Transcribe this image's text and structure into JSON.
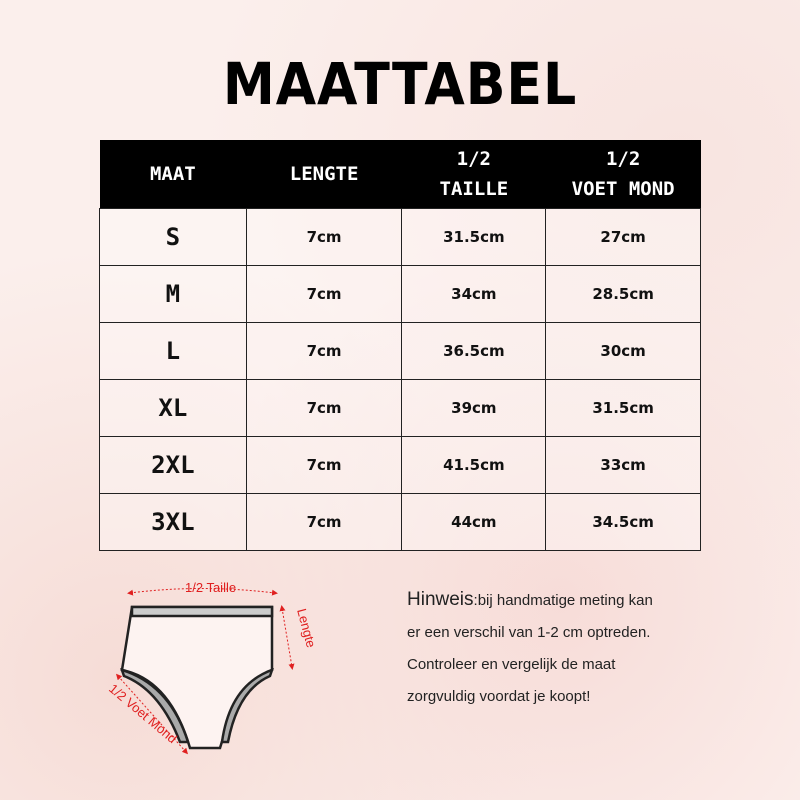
{
  "title": "MAATTABEL",
  "table": {
    "headers": [
      [
        "MAAT",
        ""
      ],
      [
        "LENGTE",
        ""
      ],
      [
        "1/2",
        "TAILLE"
      ],
      [
        "1/2",
        "VOET MOND"
      ]
    ],
    "rows": [
      [
        "S",
        "7cm",
        "31.5cm",
        "27cm"
      ],
      [
        "M",
        "7cm",
        "34cm",
        "28.5cm"
      ],
      [
        "L",
        "7cm",
        "36.5cm",
        "30cm"
      ],
      [
        "XL",
        "7cm",
        "39cm",
        "31.5cm"
      ],
      [
        "2XL",
        "7cm",
        "41.5cm",
        "33cm"
      ],
      [
        "3XL",
        "7cm",
        "44cm",
        "34.5cm"
      ]
    ]
  },
  "diagram": {
    "waist": "1/2 Taille",
    "length": "Lengte",
    "leg": "1/2 Voet Mond",
    "label_color": "#e02020"
  },
  "note": {
    "lead": "Hinweis",
    "lines": [
      ":bij handmatige meting kan",
      "er een verschil van 1-2 cm optreden.",
      "Controleer en vergelijk de maat",
      "zorgvuldig voordat je koopt!"
    ]
  }
}
